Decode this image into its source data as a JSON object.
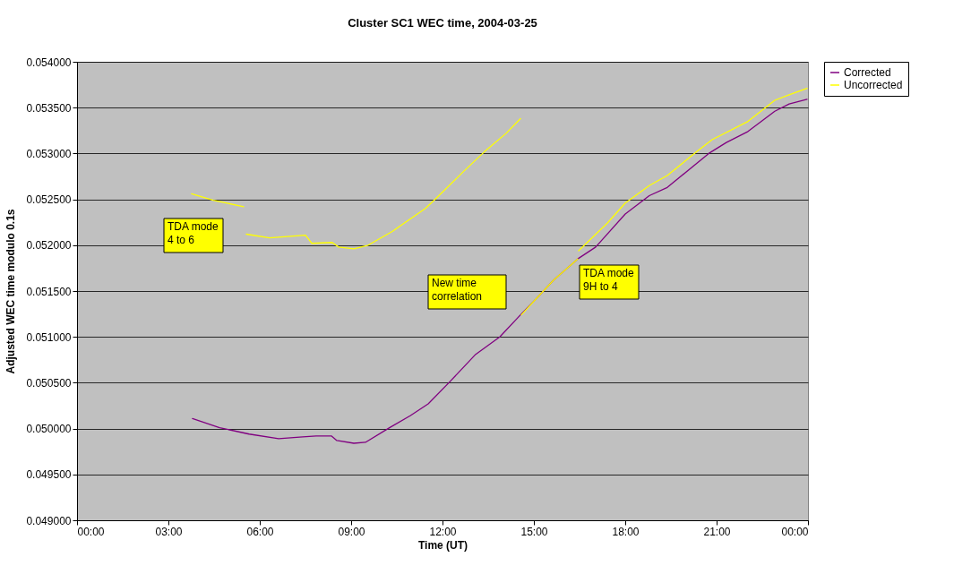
{
  "chart_data": {
    "type": "line",
    "title": "Cluster SC1 WEC time, 2004-03-25",
    "xlabel": "Time (UT)",
    "ylabel": "Adjusted WEC time modulo 0.1s",
    "xlim": [
      0,
      24
    ],
    "xticks": [
      {
        "value": 0,
        "label": "00:00"
      },
      {
        "value": 3,
        "label": "03:00"
      },
      {
        "value": 6,
        "label": "06:00"
      },
      {
        "value": 9,
        "label": "09:00"
      },
      {
        "value": 12,
        "label": "12:00"
      },
      {
        "value": 15,
        "label": "15:00"
      },
      {
        "value": 18,
        "label": "18:00"
      },
      {
        "value": 21,
        "label": "21:00"
      },
      {
        "value": 24,
        "label": "00:00"
      }
    ],
    "ylim": [
      0.049,
      0.054
    ],
    "yticks": [
      {
        "value": 0.049,
        "label": "0.049000"
      },
      {
        "value": 0.0495,
        "label": "0.049500"
      },
      {
        "value": 0.05,
        "label": "0.050000"
      },
      {
        "value": 0.0505,
        "label": "0.050500"
      },
      {
        "value": 0.051,
        "label": "0.051000"
      },
      {
        "value": 0.0515,
        "label": "0.051500"
      },
      {
        "value": 0.052,
        "label": "0.052000"
      },
      {
        "value": 0.0525,
        "label": "0.052500"
      },
      {
        "value": 0.053,
        "label": "0.053000"
      },
      {
        "value": 0.0535,
        "label": "0.053500"
      },
      {
        "value": 0.054,
        "label": "0.054000"
      }
    ],
    "grid": "y",
    "legend": "right",
    "line_style": "solid",
    "marker": "none",
    "series": [
      {
        "name": "Corrected",
        "color": "#800080",
        "x": [
          3.79,
          4.68,
          5.65,
          6.62,
          7.41,
          7.85,
          8.35,
          8.53,
          9.09,
          9.47,
          10.26,
          10.94,
          11.53,
          12.21,
          13.09,
          13.88,
          14.56,
          15.06,
          15.65,
          16.44,
          17.03,
          18.0,
          18.79,
          19.38,
          20.74,
          21.32,
          22.03,
          22.91,
          23.38,
          23.97
        ],
        "values": [
          0.05011,
          0.05001,
          0.04994,
          0.04989,
          0.04991,
          0.04992,
          0.04992,
          0.04987,
          0.04984,
          0.04985,
          0.05001,
          0.05014,
          0.05027,
          0.0505,
          0.05081,
          0.051,
          0.05124,
          0.05141,
          0.05162,
          0.05185,
          0.05198,
          0.05234,
          0.05254,
          0.05263,
          0.053,
          0.05312,
          0.05324,
          0.05346,
          0.05354,
          0.05359
        ]
      },
      {
        "name": "Uncorrected",
        "color": "#ffff00",
        "x": [
          3.76,
          4.47,
          5.47,
          5.5,
          5.56,
          6.32,
          7.5,
          7.71,
          8.38,
          8.59,
          9.09,
          9.56,
          10.35,
          11.44,
          11.82,
          12.71,
          13.38,
          14.09,
          14.56,
          14.57,
          14.59,
          15.06,
          15.65,
          16.44,
          16.45,
          16.47,
          17.41,
          18.0,
          18.79,
          19.38,
          20.35,
          20.85,
          22.03,
          22.91,
          23.38,
          23.97
        ],
        "values": [
          0.05256,
          0.05249,
          0.05242,
          null,
          0.05212,
          0.05208,
          0.05211,
          0.05202,
          0.05203,
          0.05198,
          0.05196,
          0.052,
          0.05215,
          0.0524,
          0.05252,
          0.05281,
          0.05302,
          0.05322,
          0.05338,
          null,
          0.05124,
          0.05141,
          0.05162,
          0.05185,
          null,
          0.05194,
          0.05224,
          0.05246,
          0.05265,
          0.05276,
          0.05302,
          0.05315,
          0.05335,
          0.05358,
          0.05364,
          0.05371
        ]
      }
    ],
    "annotations": [
      "TDA mode\n 4 to 6",
      "New time\ncorrelation",
      "TDA mode\n 9H to 4"
    ]
  }
}
